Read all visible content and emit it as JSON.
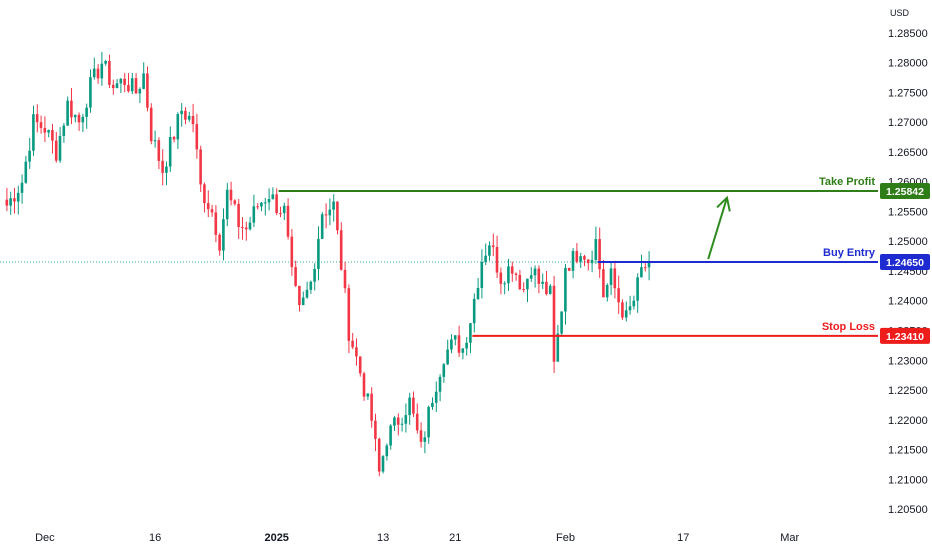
{
  "chart_data": {
    "type": "candlestick",
    "currency": "USD",
    "ylim": [
      1.2025,
      1.2905
    ],
    "y_ticks": [
      {
        "value": 1.285,
        "label": "1.28500"
      },
      {
        "value": 1.28,
        "label": "1.28000"
      },
      {
        "value": 1.275,
        "label": "1.27500"
      },
      {
        "value": 1.27,
        "label": "1.27000"
      },
      {
        "value": 1.265,
        "label": "1.26500"
      },
      {
        "value": 1.26,
        "label": "1.26000"
      },
      {
        "value": 1.255,
        "label": "1.25500"
      },
      {
        "value": 1.25,
        "label": "1.25000"
      },
      {
        "value": 1.245,
        "label": "1.24500"
      },
      {
        "value": 1.24,
        "label": "1.24000"
      },
      {
        "value": 1.235,
        "label": "1.23500"
      },
      {
        "value": 1.23,
        "label": "1.23000"
      },
      {
        "value": 1.225,
        "label": "1.22500"
      },
      {
        "value": 1.22,
        "label": "1.22000"
      },
      {
        "value": 1.215,
        "label": "1.21500"
      },
      {
        "value": 1.21,
        "label": "1.21000"
      },
      {
        "value": 1.205,
        "label": "1.20500"
      }
    ],
    "x_ticks": [
      {
        "label": "Dec",
        "bold": false
      },
      {
        "label": "16",
        "bold": false
      },
      {
        "label": "2025",
        "bold": true
      },
      {
        "label": "13",
        "bold": false
      },
      {
        "label": "21",
        "bold": false
      },
      {
        "label": "Feb",
        "bold": false
      },
      {
        "label": "17",
        "bold": false
      },
      {
        "label": "Mar",
        "bold": false
      }
    ],
    "x_tick_bar_index": [
      10,
      39,
      71,
      99,
      118,
      147,
      178,
      206
    ],
    "candle_up_color": "#089981",
    "candle_down_color": "#f23645",
    "path_points": [
      [
        0,
        1.256
      ],
      [
        4,
        1.26
      ],
      [
        7,
        1.27
      ],
      [
        10,
        1.269
      ],
      [
        13,
        1.265
      ],
      [
        16,
        1.273
      ],
      [
        19,
        1.27
      ],
      [
        22,
        1.276
      ],
      [
        25,
        1.28
      ],
      [
        28,
        1.276
      ],
      [
        31,
        1.277
      ],
      [
        34,
        1.275
      ],
      [
        36,
        1.278
      ],
      [
        38,
        1.268
      ],
      [
        41,
        1.262
      ],
      [
        44,
        1.268
      ],
      [
        46,
        1.272
      ],
      [
        49,
        1.27
      ],
      [
        51,
        1.259
      ],
      [
        54,
        1.255
      ],
      [
        56,
        1.25
      ],
      [
        58,
        1.258
      ],
      [
        61,
        1.253
      ],
      [
        63,
        1.252
      ],
      [
        66,
        1.256
      ],
      [
        69,
        1.258
      ],
      [
        71,
        1.256
      ],
      [
        73,
        1.255
      ],
      [
        75,
        1.244
      ],
      [
        77,
        1.238
      ],
      [
        80,
        1.243
      ],
      [
        83,
        1.255
      ],
      [
        86,
        1.256
      ],
      [
        88,
        1.246
      ],
      [
        90,
        1.235
      ],
      [
        93,
        1.228
      ],
      [
        96,
        1.22
      ],
      [
        98,
        1.211
      ],
      [
        100,
        1.217
      ],
      [
        103,
        1.22
      ],
      [
        106,
        1.223
      ],
      [
        109,
        1.215
      ],
      [
        112,
        1.224
      ],
      [
        115,
        1.231
      ],
      [
        118,
        1.233
      ],
      [
        120,
        1.232
      ],
      [
        122,
        1.237
      ],
      [
        125,
        1.247
      ],
      [
        127,
        1.25
      ],
      [
        130,
        1.244
      ],
      [
        133,
        1.246
      ],
      [
        136,
        1.242
      ],
      [
        138,
        1.246
      ],
      [
        140,
        1.243
      ],
      [
        143,
        1.241
      ],
      [
        144,
        1.229
      ],
      [
        146,
        1.239
      ],
      [
        147,
        1.246
      ],
      [
        149,
        1.247
      ],
      [
        151,
        1.249
      ],
      [
        153,
        1.247
      ],
      [
        155,
        1.25
      ],
      [
        157,
        1.241
      ],
      [
        159,
        1.244
      ],
      [
        161,
        1.24
      ],
      [
        163,
        1.237
      ],
      [
        165,
        1.24
      ],
      [
        167,
        1.245
      ],
      [
        169,
        1.2465
      ]
    ],
    "levels": [
      {
        "name": "Take Profit",
        "value": 1.25842,
        "label": "1.25842",
        "color": "#2e7d17",
        "start_bar": 72
      },
      {
        "name": "Buy Entry",
        "value": 1.2465,
        "label": "1.24650",
        "color": "#1e2bd0",
        "start_bar": 156
      },
      {
        "name": "Stop Loss",
        "value": 1.2341,
        "label": "1.23410",
        "color": "#ef1c1c",
        "start_bar": 123
      }
    ],
    "current_price": 1.2465,
    "arrow": {
      "color": "#2e8b1e",
      "from_bar": 184,
      "from_value": 1.247,
      "to_bar": 190,
      "to_value": 1.2573
    }
  }
}
